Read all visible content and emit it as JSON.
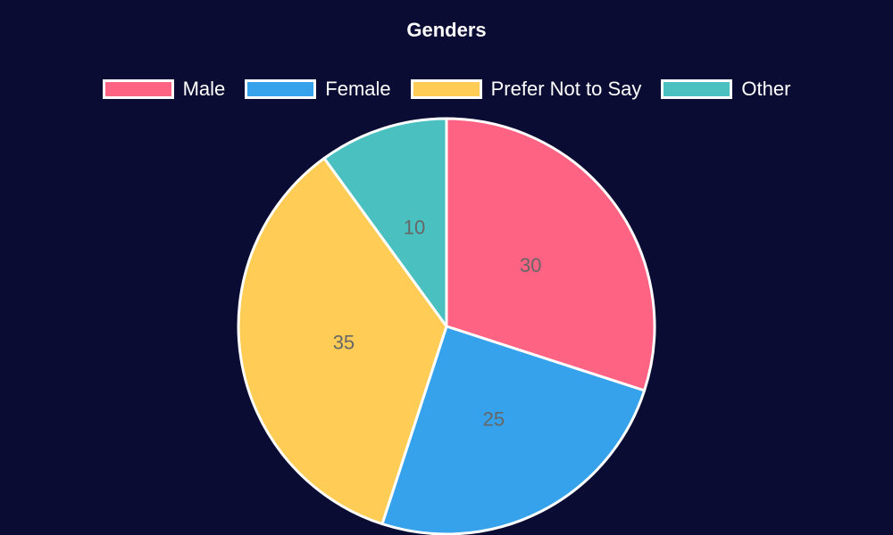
{
  "chart_data": {
    "type": "pie",
    "title": "Genders",
    "legend_position": "top",
    "categories": [
      "Male",
      "Female",
      "Prefer Not to Say",
      "Other"
    ],
    "values": [
      30,
      25,
      35,
      10
    ],
    "data_labels": [
      "30",
      "25",
      "35",
      "10"
    ],
    "colors": [
      "#ff6384",
      "#36a2eb",
      "#ffcd56",
      "#4bc0c0"
    ],
    "slice_border_color": "#ffffff"
  },
  "background_color": "#0b0c33"
}
